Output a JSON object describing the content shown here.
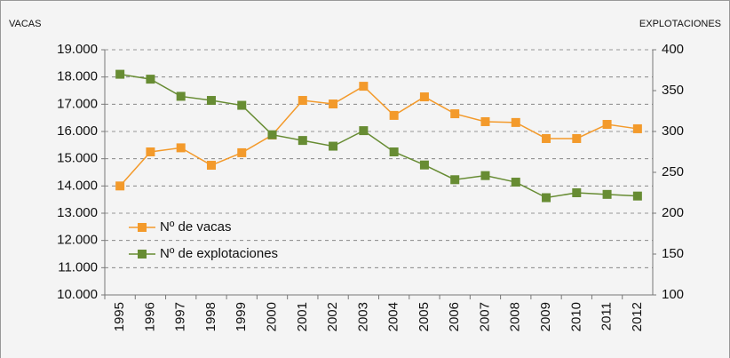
{
  "chart_data": {
    "type": "line",
    "y_label": "VACAS",
    "y2_label": "EXPLOTACIONES",
    "categories": [
      "1995",
      "1996",
      "1997",
      "1998",
      "1999",
      "2000",
      "2001",
      "2002",
      "2003",
      "2004",
      "2005",
      "2006",
      "2007",
      "2008",
      "2009",
      "2010",
      "2011",
      "2012"
    ],
    "series": [
      {
        "name": "Nº de vacas",
        "color": "#f39a2b",
        "values": [
          14000,
          15250,
          15400,
          14760,
          15220,
          15870,
          17140,
          17010,
          17660,
          16590,
          17270,
          16650,
          16360,
          16330,
          15740,
          15740,
          16260,
          16100
        ]
      },
      {
        "name": "Nº de explotaciones",
        "color": "#678c33",
        "axis": "y2",
        "values": [
          370,
          364,
          343,
          338,
          332,
          296,
          289,
          282,
          301,
          275,
          259,
          241,
          246,
          238,
          219,
          225,
          223,
          221
        ]
      }
    ],
    "ylim": [
      10000,
      19000
    ],
    "yticks": [
      {
        "value": 10000,
        "label": "10.000"
      },
      {
        "value": 11000,
        "label": "11.000"
      },
      {
        "value": 12000,
        "label": "12.000"
      },
      {
        "value": 13000,
        "label": "13.000"
      },
      {
        "value": 14000,
        "label": "14.000"
      },
      {
        "value": 15000,
        "label": "15.000"
      },
      {
        "value": 16000,
        "label": "16.000"
      },
      {
        "value": 17000,
        "label": "17.000"
      },
      {
        "value": 18000,
        "label": "18.000"
      },
      {
        "value": 19000,
        "label": "19.000"
      }
    ],
    "y2lim": [
      100,
      400
    ],
    "y2ticks": [
      100,
      150,
      200,
      250,
      300,
      350,
      400
    ],
    "grid": true,
    "legend": "left"
  }
}
